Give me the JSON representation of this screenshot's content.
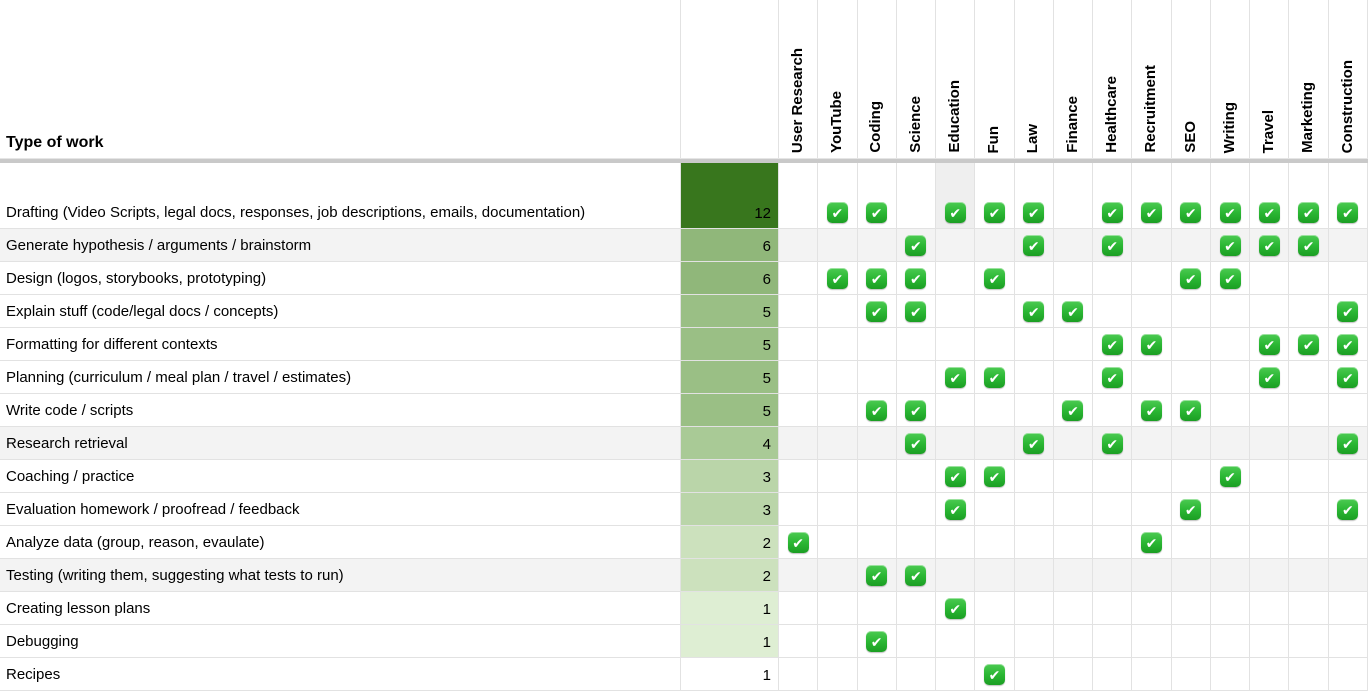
{
  "sheet": {
    "corner_header": "Type of work",
    "columns": [
      "User Research",
      "YouTube",
      "Coding",
      "Science",
      "Education",
      "Fun",
      "Law",
      "Finance",
      "Healthcare",
      "Recruitment",
      "SEO",
      "Writing",
      "Travel",
      "Marketing",
      "Construction"
    ],
    "check_icon": "checkmark",
    "check_glyph": "✔",
    "colors": {
      "gridline": "#e2e2e2",
      "divider_bar": "#c9c9c9",
      "banded_row_bg": "#f3f3f3",
      "check_green": "#2bb734",
      "count_scale_max": "#38761d",
      "count_scale_min": "#deeed3"
    },
    "rows": [
      {
        "label": "Drafting (Video Scripts, legal docs, responses, job descriptions, emails, documentation)",
        "count": "12",
        "count_bg": "#38761d",
        "row_bg": "#ffffff",
        "tall": true,
        "checks": [
          "YouTube",
          "Coding",
          "Education",
          "Fun",
          "Law",
          "Healthcare",
          "Recruitment",
          "SEO",
          "Writing",
          "Travel",
          "Marketing",
          "Construction"
        ],
        "cell_bg": {
          "Education": "#efefef"
        }
      },
      {
        "label": "Generate hypothesis / arguments / brainstorm",
        "count": "6",
        "count_bg": "#90b77a",
        "row_bg": "#f3f3f3",
        "tall": false,
        "checks": [
          "Science",
          "Law",
          "Healthcare",
          "Writing",
          "Travel",
          "Marketing"
        ],
        "cell_bg": {}
      },
      {
        "label": "Design (logos, storybooks, prototyping)",
        "count": "6",
        "count_bg": "#90b77a",
        "row_bg": "#ffffff",
        "tall": false,
        "checks": [
          "YouTube",
          "Coding",
          "Science",
          "Fun",
          "SEO",
          "Writing"
        ],
        "cell_bg": {}
      },
      {
        "label": "Explain stuff (code/legal docs / concepts)",
        "count": "5",
        "count_bg": "#9abf85",
        "row_bg": "#ffffff",
        "tall": false,
        "checks": [
          "Coding",
          "Science",
          "Law",
          "Finance",
          "Construction"
        ],
        "cell_bg": {}
      },
      {
        "label": "Formatting for different contexts",
        "count": "5",
        "count_bg": "#9abf85",
        "row_bg": "#ffffff",
        "tall": false,
        "checks": [
          "Healthcare",
          "Recruitment",
          "Travel",
          "Marketing",
          "Construction"
        ],
        "cell_bg": {}
      },
      {
        "label": "Planning (curriculum / meal plan / travel / estimates)",
        "count": "5",
        "count_bg": "#9abf85",
        "row_bg": "#ffffff",
        "tall": false,
        "checks": [
          "Education",
          "Fun",
          "Healthcare",
          "Travel",
          "Construction"
        ],
        "cell_bg": {}
      },
      {
        "label": "Write code / scripts",
        "count": "5",
        "count_bg": "#9abf85",
        "row_bg": "#ffffff",
        "tall": false,
        "checks": [
          "Coding",
          "Science",
          "Finance",
          "Recruitment",
          "SEO"
        ],
        "cell_bg": {}
      },
      {
        "label": "Research retrieval",
        "count": "4",
        "count_bg": "#a9ca96",
        "row_bg": "#f3f3f3",
        "tall": false,
        "checks": [
          "Science",
          "Law",
          "Healthcare",
          "Construction"
        ],
        "cell_bg": {}
      },
      {
        "label": "Coaching / practice",
        "count": "3",
        "count_bg": "#bad5a9",
        "row_bg": "#ffffff",
        "tall": false,
        "checks": [
          "Education",
          "Fun",
          "Writing"
        ],
        "cell_bg": {}
      },
      {
        "label": "Evaluation homework / proofread / feedback",
        "count": "3",
        "count_bg": "#bad5a9",
        "row_bg": "#ffffff",
        "tall": false,
        "checks": [
          "Education",
          "SEO",
          "Construction"
        ],
        "cell_bg": {}
      },
      {
        "label": "Analyze data (group, reason, evaulate)",
        "count": "2",
        "count_bg": "#cce1bd",
        "row_bg": "#ffffff",
        "tall": false,
        "checks": [
          "User Research",
          "Recruitment"
        ],
        "cell_bg": {}
      },
      {
        "label": "Testing (writing them, suggesting what tests to run)",
        "count": "2",
        "count_bg": "#cce1bd",
        "row_bg": "#f3f3f3",
        "tall": false,
        "checks": [
          "Coding",
          "Science"
        ],
        "cell_bg": {}
      },
      {
        "label": "Creating lesson plans",
        "count": "1",
        "count_bg": "#deeed3",
        "row_bg": "#ffffff",
        "tall": false,
        "checks": [
          "Education"
        ],
        "cell_bg": {}
      },
      {
        "label": "Debugging",
        "count": "1",
        "count_bg": "#deeed3",
        "row_bg": "#ffffff",
        "tall": false,
        "checks": [
          "Coding"
        ],
        "cell_bg": {}
      },
      {
        "label": "Recipes",
        "count": "1",
        "count_bg": "#ffffff",
        "row_bg": "#ffffff",
        "tall": false,
        "checks": [
          "Fun"
        ],
        "cell_bg": {}
      }
    ]
  }
}
